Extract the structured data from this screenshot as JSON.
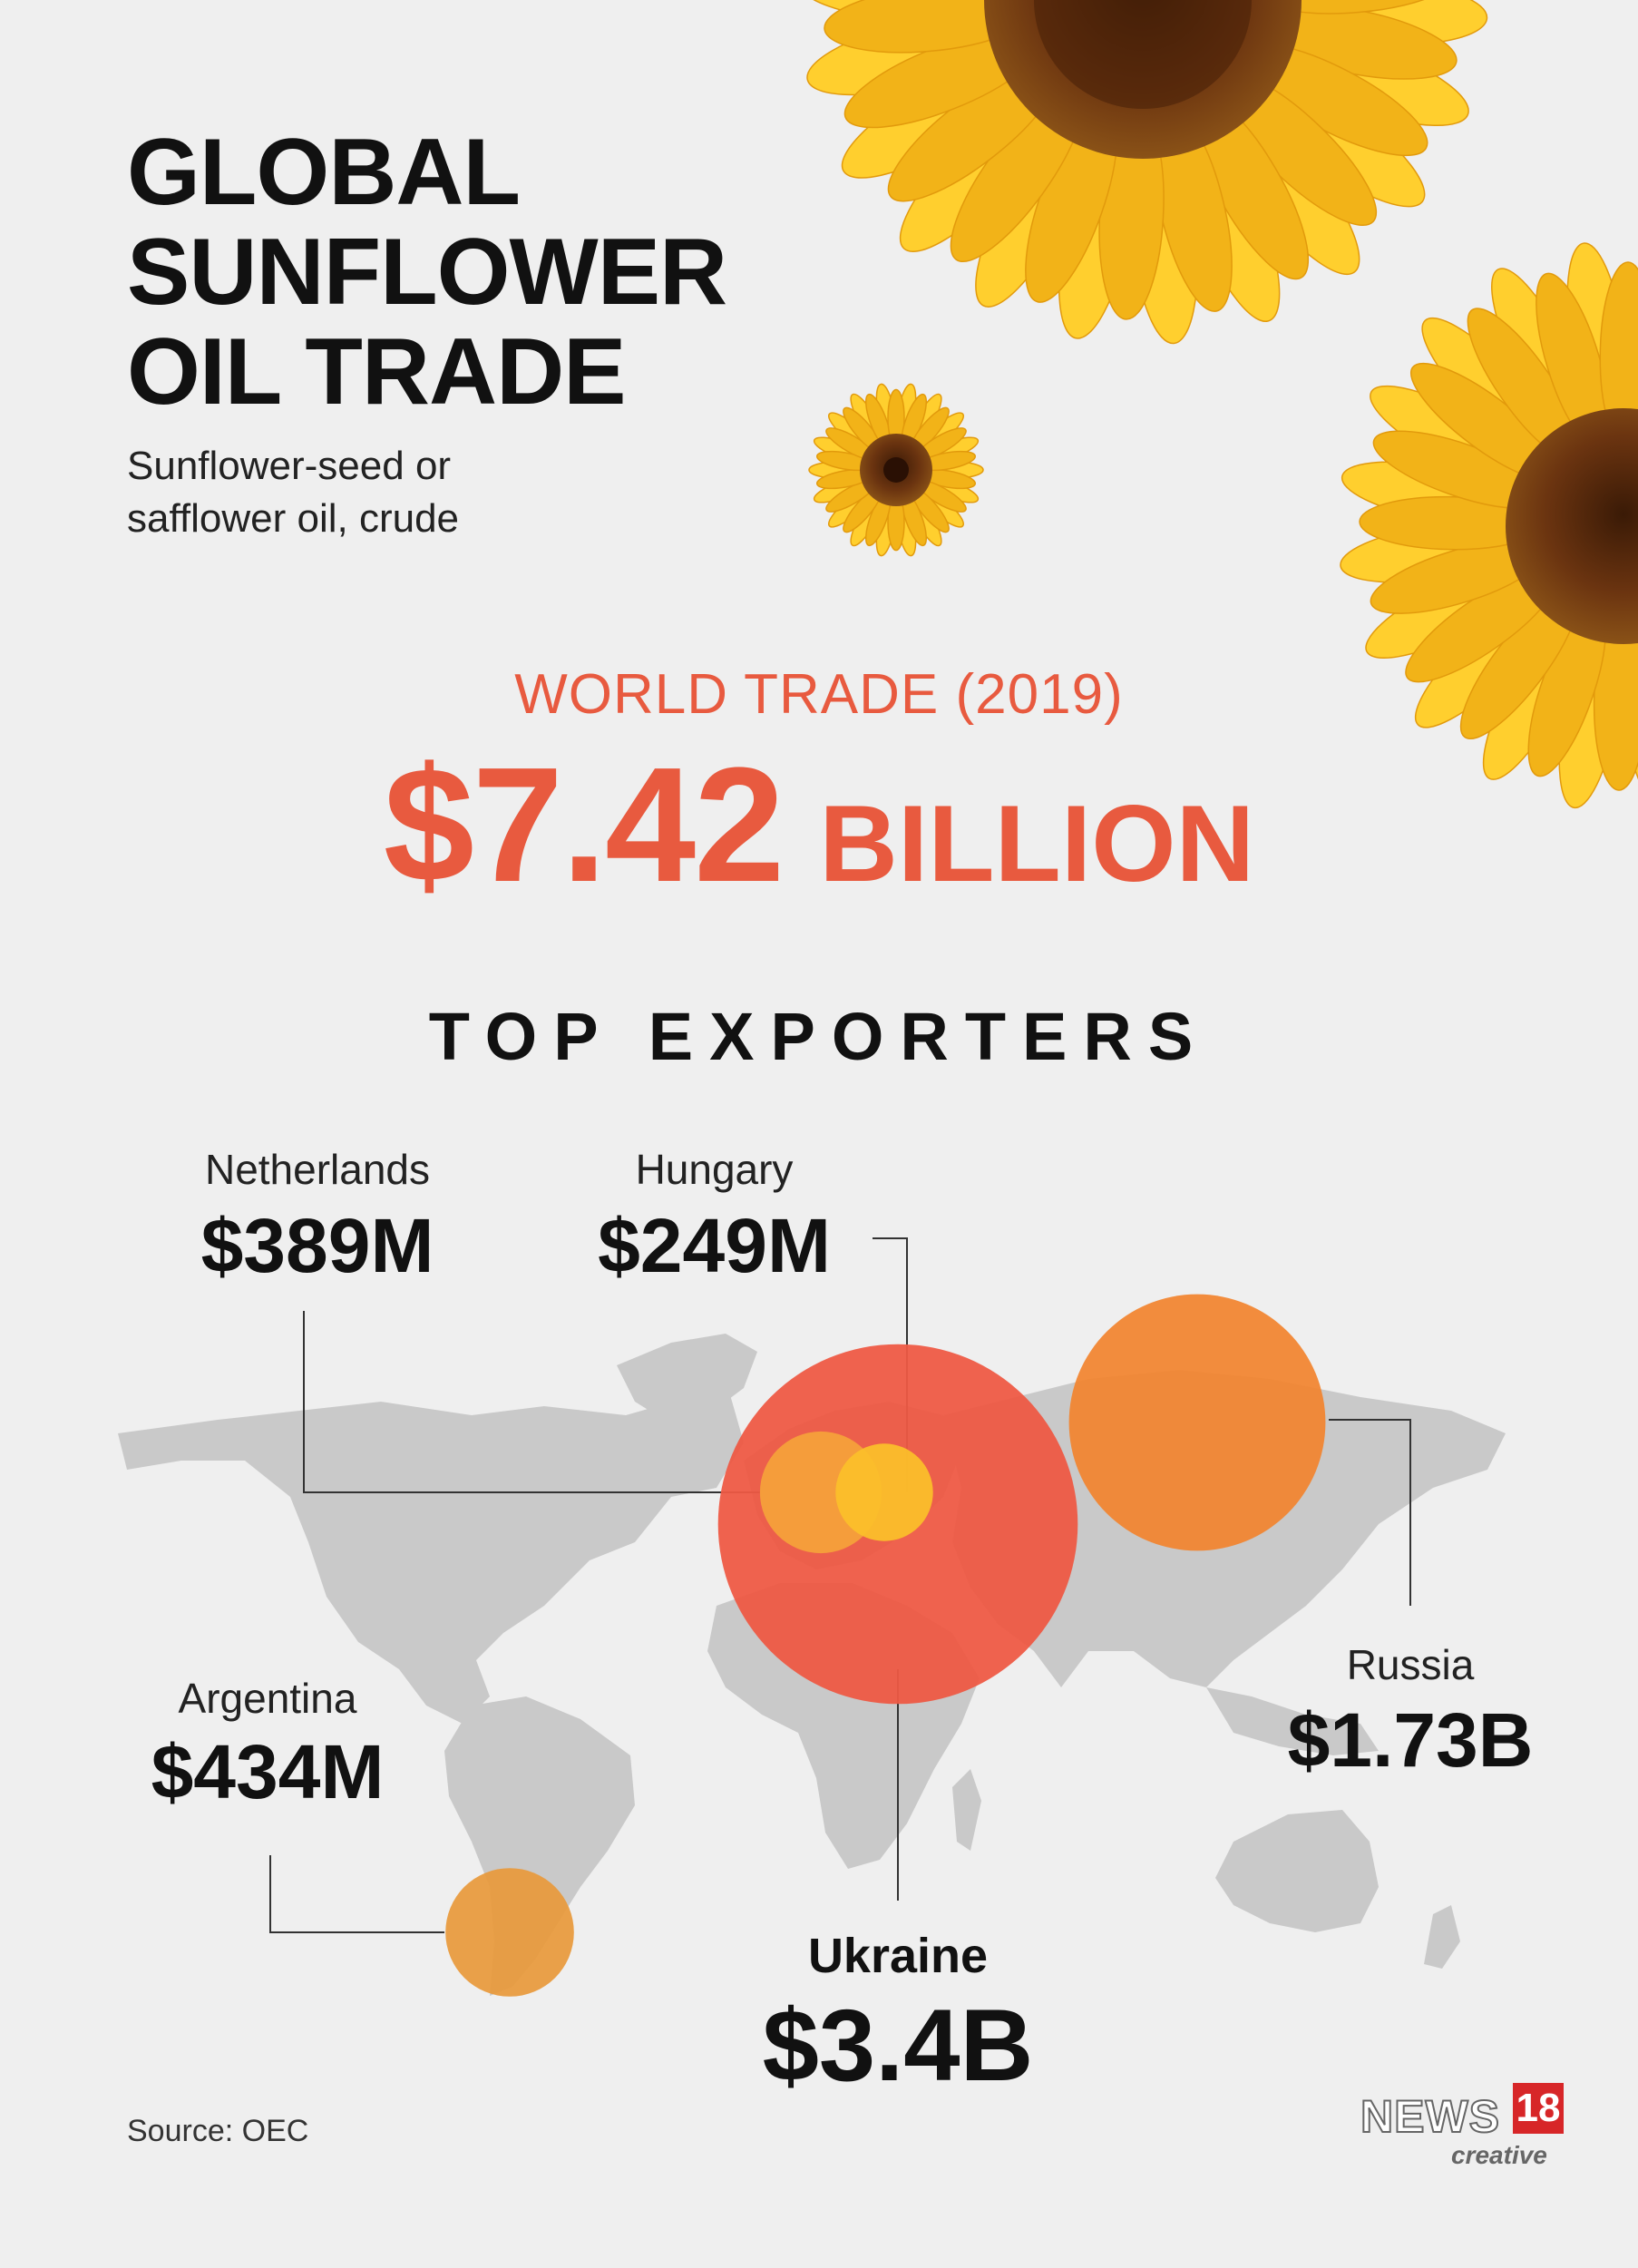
{
  "header": {
    "title_lines": [
      "GLOBAL",
      "SUNFLOWER",
      "OIL TRADE"
    ],
    "subtitle_lines": [
      "Sunflower-seed or",
      "safflower oil, crude"
    ]
  },
  "world_trade": {
    "label": "WORLD TRADE (2019)",
    "amount": "$7.42",
    "unit": "BILLION"
  },
  "section_title": "TOP EXPORTERS",
  "exporters": [
    {
      "name": "Netherlands",
      "value": "$389M",
      "amount_musd": 389,
      "color": "#f5a13a"
    },
    {
      "name": "Hungary",
      "value": "$249M",
      "amount_musd": 249,
      "color": "#fbbf2a"
    },
    {
      "name": "Argentina",
      "value": "$434M",
      "amount_musd": 434,
      "color": "#e89a3c"
    },
    {
      "name": "Ukraine",
      "value": "$3.4B",
      "amount_musd": 3400,
      "color": "#ee5a45"
    },
    {
      "name": "Russia",
      "value": "$1.73B",
      "amount_musd": 1730,
      "color": "#f2842f"
    }
  ],
  "source": "Source: OEC",
  "logo": {
    "news": "NEWS",
    "number": "18",
    "sub": "creative"
  },
  "colors": {
    "accent": "#e85a3f",
    "background": "#efefef",
    "map": "#c9c9c9",
    "sunflower_petal": "#f7c21b",
    "sunflower_center": "#5a2a0c"
  },
  "icons": [
    "sunflower-icon"
  ]
}
